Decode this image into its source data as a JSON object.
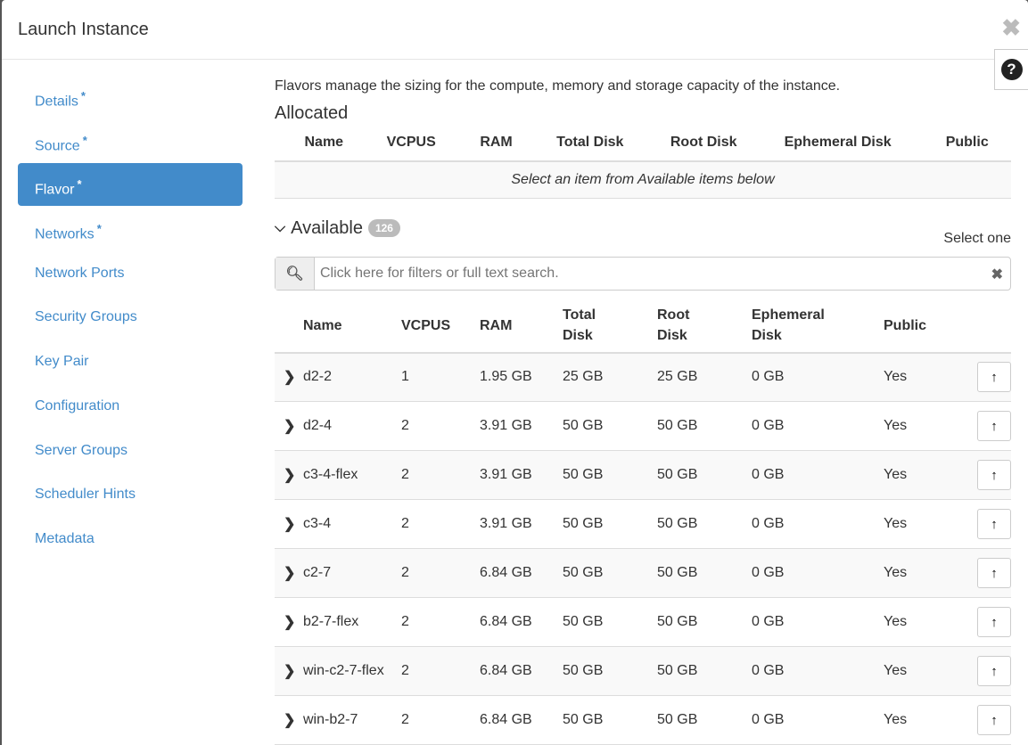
{
  "modal": {
    "title": "Launch Instance",
    "close_icon": "close-icon",
    "help_icon": "question-circle-icon"
  },
  "nav": [
    {
      "label": "Details",
      "required": "*"
    },
    {
      "label": "Source",
      "required": "*"
    },
    {
      "label": "Flavor",
      "required": "*",
      "active": true
    },
    {
      "label": "Networks",
      "required": "*"
    },
    {
      "label": "Network Ports"
    },
    {
      "label": "Security Groups"
    },
    {
      "label": "Key Pair"
    },
    {
      "label": "Configuration"
    },
    {
      "label": "Server Groups"
    },
    {
      "label": "Scheduler Hints"
    },
    {
      "label": "Metadata"
    }
  ],
  "main": {
    "description": "Flavors manage the sizing for the compute, memory and storage capacity of the instance.",
    "allocated": {
      "title": "Allocated",
      "columns": [
        "Name",
        "VCPUS",
        "RAM",
        "Total Disk",
        "Root Disk",
        "Ephemeral Disk",
        "Public"
      ],
      "empty": "Select an item from Available items below"
    },
    "available": {
      "title": "Available",
      "count": "126",
      "select_hint": "Select one",
      "search_placeholder": "Click here for filters or full text search.",
      "columns": [
        "Name",
        "VCPUS",
        "RAM",
        "Total Disk",
        "Root Disk",
        "Ephemeral Disk",
        "Public"
      ],
      "rows": [
        [
          "d2-2",
          "1",
          "1.95 GB",
          "25 GB",
          "25 GB",
          "0 GB",
          "Yes"
        ],
        [
          "d2-4",
          "2",
          "3.91 GB",
          "50 GB",
          "50 GB",
          "0 GB",
          "Yes"
        ],
        [
          "c3-4-flex",
          "2",
          "3.91 GB",
          "50 GB",
          "50 GB",
          "0 GB",
          "Yes"
        ],
        [
          "c3-4",
          "2",
          "3.91 GB",
          "50 GB",
          "50 GB",
          "0 GB",
          "Yes"
        ],
        [
          "c2-7",
          "2",
          "6.84 GB",
          "50 GB",
          "50 GB",
          "0 GB",
          "Yes"
        ],
        [
          "b2-7-flex",
          "2",
          "6.84 GB",
          "50 GB",
          "50 GB",
          "0 GB",
          "Yes"
        ],
        [
          "win-c2-7-flex",
          "2",
          "6.84 GB",
          "50 GB",
          "50 GB",
          "0 GB",
          "Yes"
        ],
        [
          "win-b2-7",
          "2",
          "6.84 GB",
          "50 GB",
          "50 GB",
          "0 GB",
          "Yes"
        ]
      ]
    }
  }
}
